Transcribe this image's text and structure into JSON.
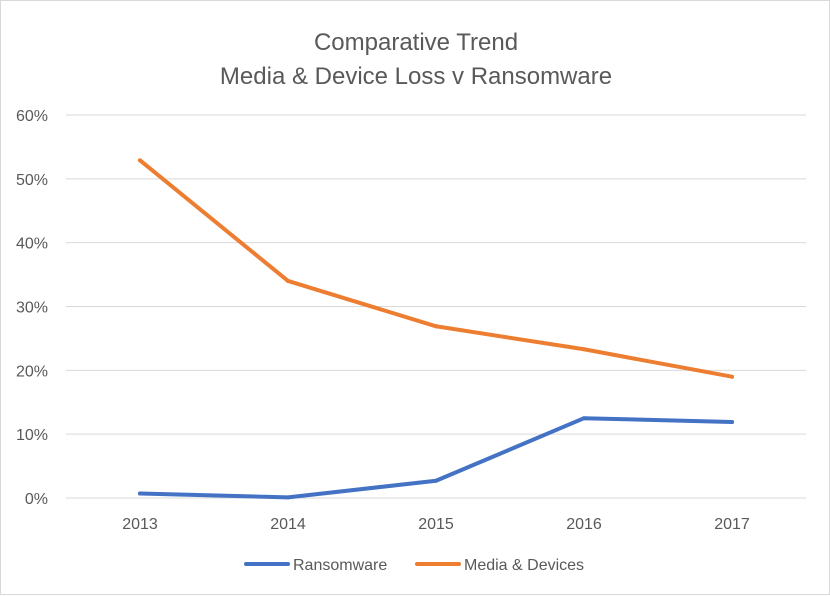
{
  "chart_data": {
    "type": "line",
    "title": "Comparative Trend",
    "subtitle": "Media & Device Loss v Ransomware",
    "xlabel": "",
    "ylabel": "",
    "categories": [
      "2013",
      "2014",
      "2015",
      "2016",
      "2017"
    ],
    "ylim": [
      0,
      60
    ],
    "yticks": [
      "0%",
      "10%",
      "20%",
      "30%",
      "40%",
      "50%",
      "60%"
    ],
    "grid": true,
    "legend_position": "bottom",
    "series": [
      {
        "name": "Ransomware",
        "color": "#4472c4",
        "values": [
          0.7,
          0.1,
          2.7,
          12.5,
          11.9
        ]
      },
      {
        "name": "Media & Devices",
        "color": "#ed7d31",
        "values": [
          52.9,
          34.0,
          26.9,
          23.3,
          19.0
        ]
      }
    ]
  }
}
